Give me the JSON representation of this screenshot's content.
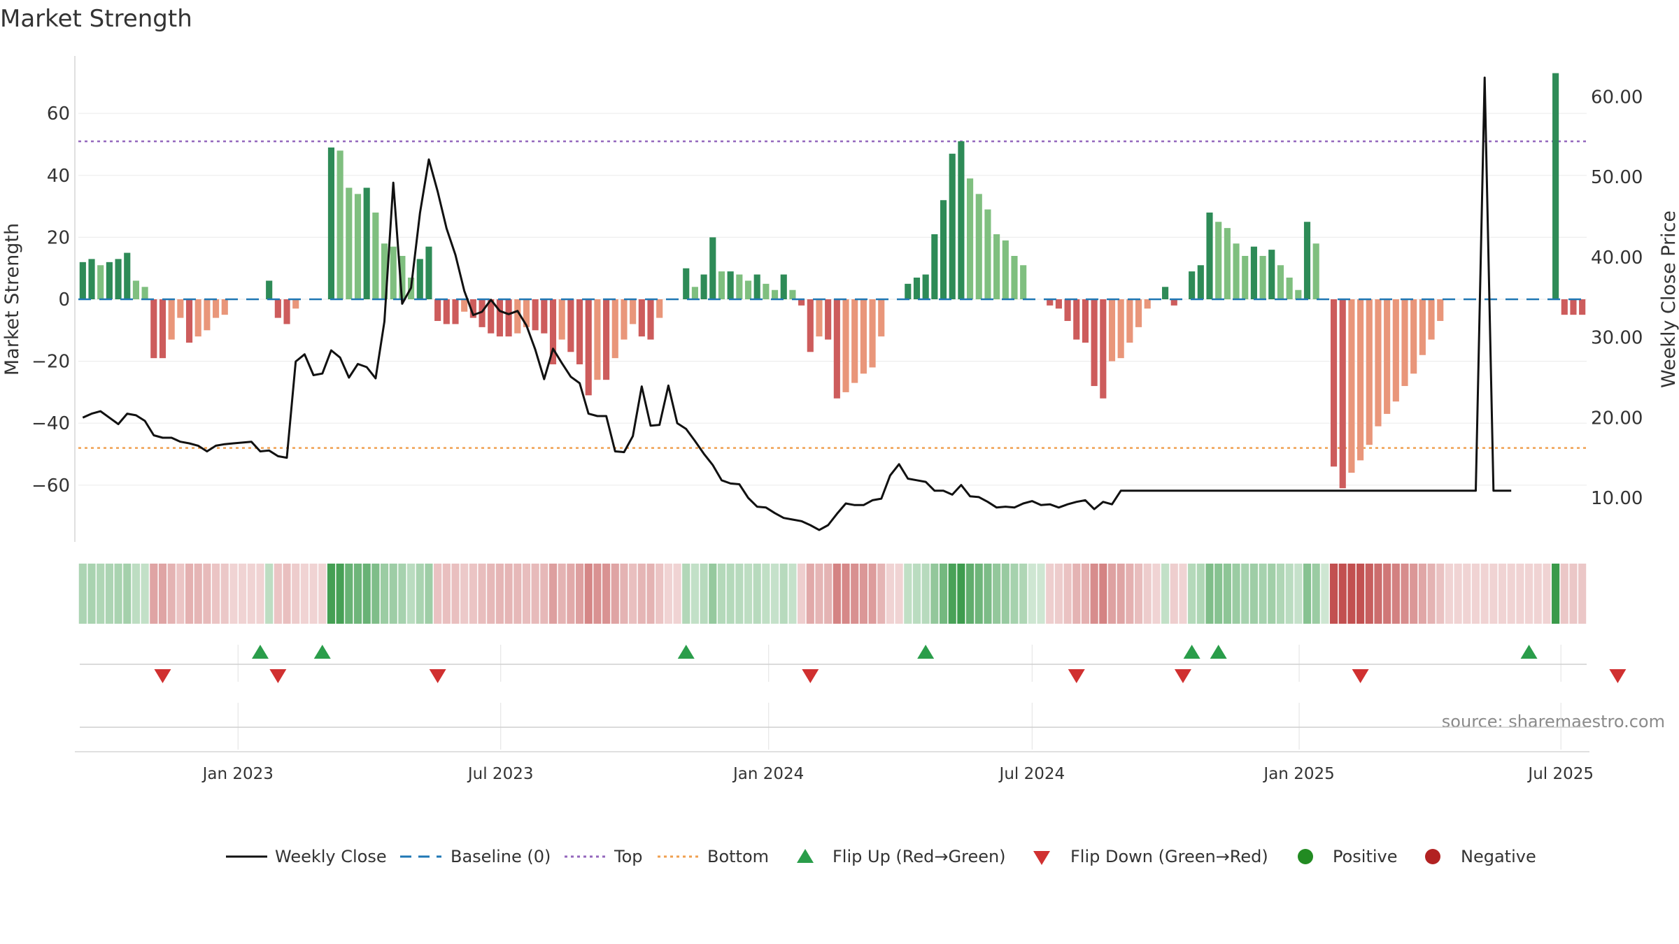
{
  "title": "Market Strength",
  "source": "source: sharemaestro.com",
  "colors": {
    "pos_strong": "#2e8b57",
    "pos_light": "#7fbf7f",
    "neg_strong": "#cd5c5c",
    "neg_light": "#e9967a",
    "line": "#111111",
    "baseline": "#1f77b4",
    "top": "#9467bd",
    "bottom": "#f0a050",
    "flip_up": "#2a9d4a",
    "flip_down": "#d03030",
    "positive": "#228b22",
    "negative": "#b22222"
  },
  "chart_data": {
    "type": "bar",
    "title": "Market Strength",
    "ylabel": "Market Strength",
    "y2label": "Weekly Close Price",
    "ylim": [
      -78,
      78
    ],
    "y2lim": [
      4.6,
      65.2
    ],
    "yticks": [
      "60",
      "40",
      "20",
      "0",
      "−20",
      "−40",
      "−60"
    ],
    "ytick_values": [
      60,
      40,
      20,
      0,
      -20,
      -40,
      -60
    ],
    "y2ticks": [
      "60.00",
      "50.00",
      "40.00",
      "30.00",
      "20.00",
      "10.00"
    ],
    "y2tick_values": [
      60,
      50,
      40,
      30,
      20,
      10
    ],
    "xticks": [
      "Jan 2023",
      "Jul 2023",
      "Jan 2024",
      "Jul 2024",
      "Jan 2025",
      "Jul 2025"
    ],
    "xtick_index": [
      17.5,
      47.1,
      77.3,
      107,
      137.1,
      166.6
    ],
    "baseline": 0,
    "top_level": 51,
    "bottom_level": -48,
    "strength": [
      12,
      13,
      11,
      12,
      13,
      15,
      6,
      4,
      -19,
      -19,
      -13,
      -6,
      -14,
      -12,
      -10,
      -6,
      -5,
      0,
      0,
      0,
      0,
      6,
      -6,
      -8,
      -3,
      0,
      0,
      0,
      49,
      48,
      36,
      34,
      36,
      28,
      18,
      17,
      14,
      7,
      13,
      17,
      -7,
      -8,
      -8,
      -4,
      -6,
      -9,
      -11,
      -12,
      -12,
      -11,
      -9,
      -10,
      -11,
      -21,
      -13,
      -17,
      -21,
      -31,
      -26,
      -26,
      -19,
      -13,
      -8,
      -12,
      -13,
      -6,
      0,
      0,
      10,
      4,
      8,
      20,
      9,
      9,
      8,
      6,
      8,
      5,
      3,
      8,
      3,
      -2,
      -17,
      -12,
      -13,
      -32,
      -30,
      -27,
      -24,
      -22,
      -12,
      0,
      0,
      5,
      7,
      8,
      21,
      32,
      47,
      51,
      39,
      34,
      29,
      21,
      19,
      14,
      11,
      0,
      0,
      -2,
      -3,
      -7,
      -13,
      -14,
      -28,
      -32,
      -20,
      -19,
      -14,
      -9,
      -3,
      0,
      4,
      -2,
      0,
      9,
      11,
      28,
      25,
      23,
      18,
      14,
      17,
      14,
      16,
      11,
      7,
      3,
      25,
      18,
      0,
      -54,
      -61,
      -56,
      -52,
      -47,
      -41,
      -37,
      -33,
      -28,
      -24,
      -18,
      -13,
      -7,
      0,
      0,
      0,
      0,
      0,
      0,
      0,
      0,
      0,
      0,
      0,
      0,
      73,
      -5,
      -5,
      -5
    ],
    "close": [
      20,
      20.5,
      20.8,
      20,
      19.2,
      20.5,
      20.3,
      19.6,
      17.8,
      17.5,
      17.5,
      17,
      16.8,
      16.5,
      15.8,
      16.5,
      16.7,
      16.8,
      16.9,
      17,
      15.8,
      15.9,
      15.2,
      15,
      27,
      27.9,
      25.3,
      25.5,
      28.4,
      27.5,
      25,
      26.7,
      26.3,
      24.9,
      32,
      49.3,
      34.2,
      36.2,
      45.5,
      52.2,
      48.2,
      43.6,
      40.3,
      35.8,
      32.8,
      33.2,
      34.7,
      33.3,
      32.9,
      33.3,
      31.5,
      28.5,
      24.8,
      28.6,
      26.8,
      25.1,
      24.3,
      20.5,
      20.2,
      20.2,
      15.8,
      15.7,
      17.7,
      23.9,
      19,
      19.1,
      24,
      19.3,
      18.6,
      17.1,
      15.5,
      14.1,
      12.2,
      11.8,
      11.7,
      10,
      8.9,
      8.8,
      8.1,
      7.5,
      7.3,
      7.1,
      6.6,
      6,
      6.6,
      8,
      9.3,
      9.1,
      9.1,
      9.7,
      9.9,
      12.8,
      14.2,
      12.4,
      12.2,
      12,
      10.9,
      10.9,
      10.4,
      11.6,
      10.2,
      10.1,
      9.5,
      8.8,
      8.9,
      8.8,
      9.3,
      9.6,
      9.1,
      9.2,
      8.8,
      9.2,
      9.5,
      9.7,
      8.6,
      9.5,
      9.2,
      10.9,
      10.9,
      10.9,
      10.9,
      10.9,
      10.9,
      10.9,
      10.9,
      10.9,
      10.9,
      10.9,
      10.9,
      10.9,
      10.9,
      10.9,
      10.9,
      10.9,
      10.9,
      10.9,
      10.9,
      10.9,
      10.9,
      10.9,
      10.9,
      10.9,
      10.9,
      10.9,
      10.9,
      10.9,
      10.9,
      10.9,
      10.9,
      10.9,
      10.9,
      10.9,
      10.9,
      10.9,
      10.9,
      10.9,
      10.9,
      10.9,
      62.4,
      10.9,
      10.9,
      10.9
    ],
    "flip_up_index": [
      20,
      27,
      68,
      95,
      125,
      128,
      163
    ],
    "flip_down_index": [
      9,
      22,
      40,
      82,
      112,
      124,
      144,
      173
    ],
    "legend": [
      "Weekly Close",
      "Baseline (0)",
      "Top",
      "Bottom",
      "Flip Up (Red→Green)",
      "Flip Down (Green→Red)",
      "Positive",
      "Negative"
    ],
    "legend_placement": "bottom-center",
    "grid": true
  }
}
